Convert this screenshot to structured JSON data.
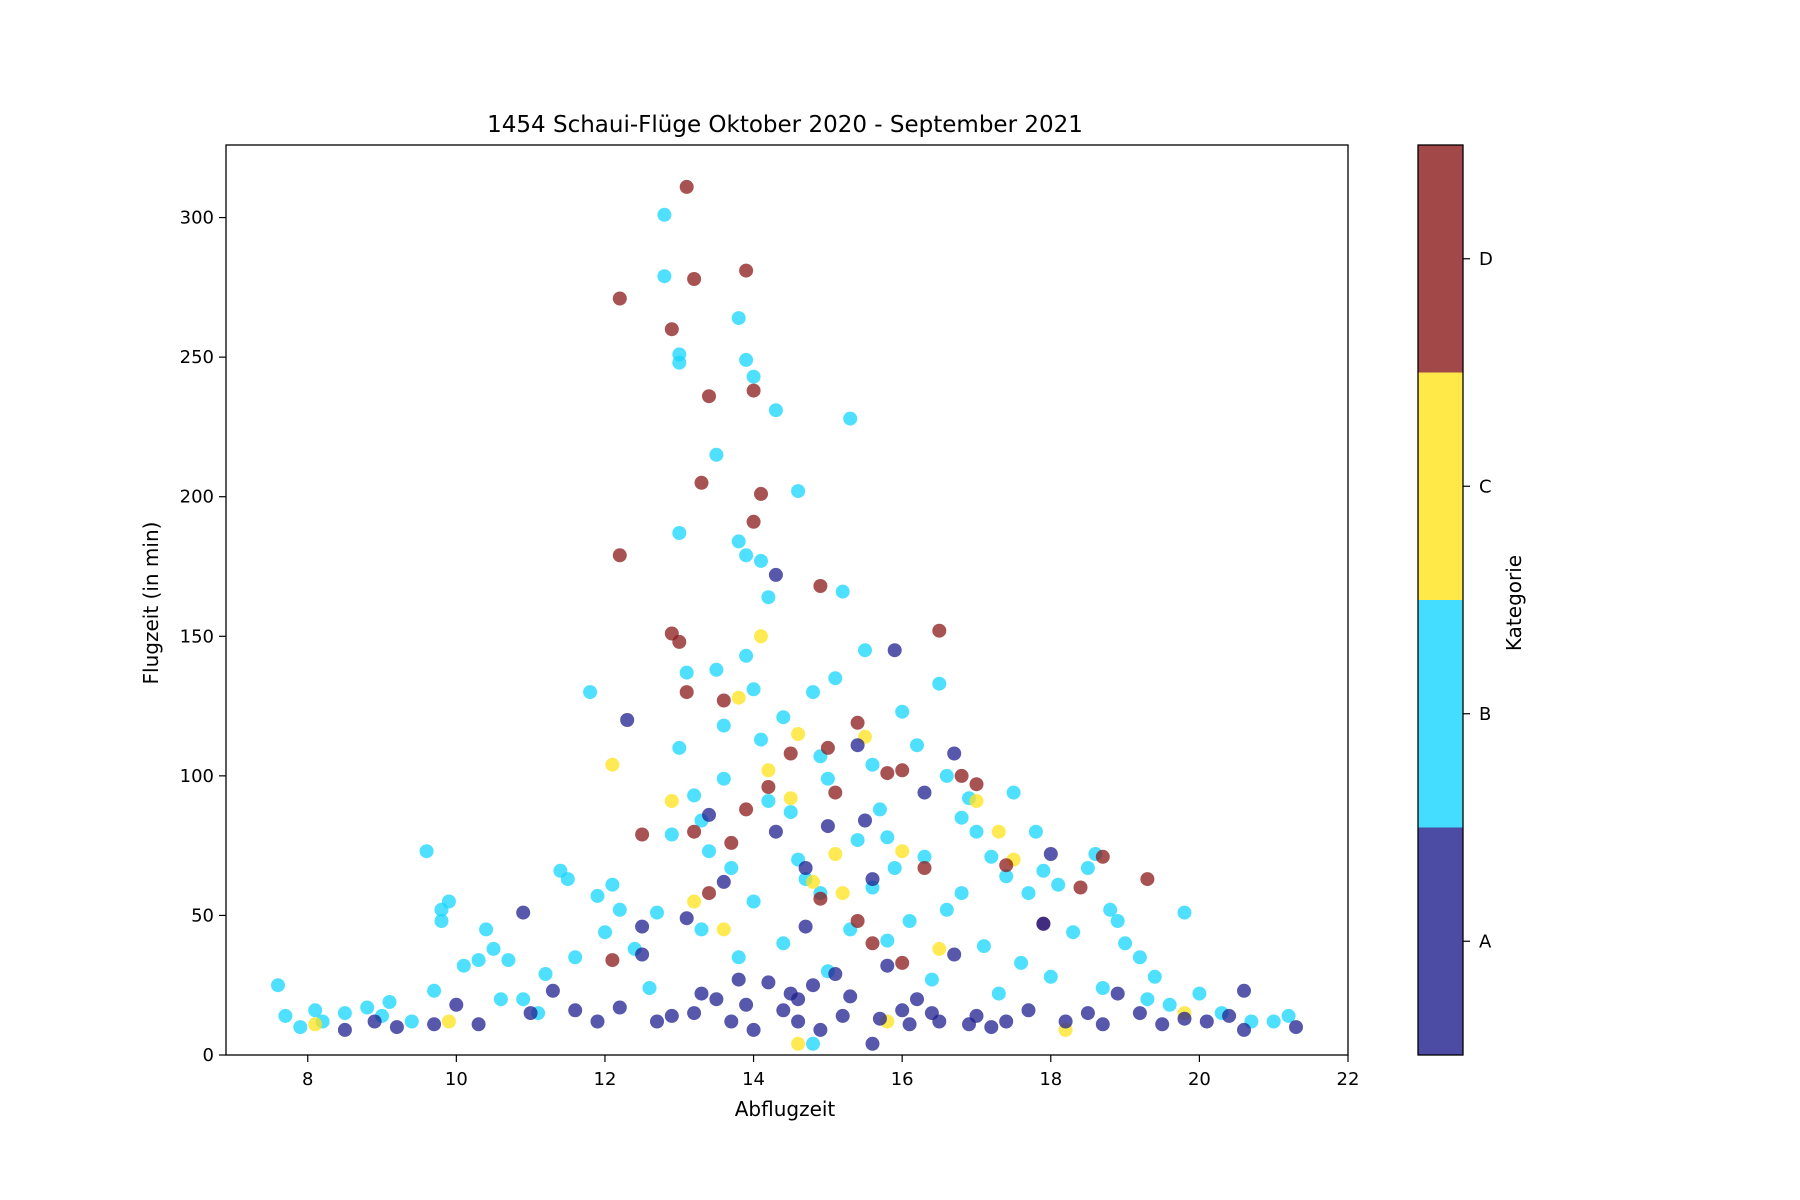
{
  "chart_data": {
    "type": "scatter",
    "title": "1454 Schaui-Flüge Oktober 2020 - September 2021",
    "xlabel": "Abflugzeit",
    "ylabel": "Flugzeit (in min)",
    "xlim": [
      6.9,
      22
    ],
    "ylim": [
      0,
      326
    ],
    "xticks": [
      8,
      10,
      12,
      14,
      16,
      18,
      20,
      22
    ],
    "yticks": [
      0,
      50,
      100,
      150,
      200,
      250,
      300
    ],
    "grid": false,
    "colorbar": {
      "label": "Kategorie",
      "categories": [
        "A",
        "B",
        "C",
        "D"
      ],
      "colors": [
        "#1f1f8f",
        "#15d5ff",
        "#ffe31a",
        "#8b1a1a"
      ]
    },
    "series": [
      {
        "name": "A",
        "points": [
          [
            8.5,
            9
          ],
          [
            8.9,
            12
          ],
          [
            9.2,
            10
          ],
          [
            9.7,
            11
          ],
          [
            10.0,
            18
          ],
          [
            10.3,
            11
          ],
          [
            10.9,
            51
          ],
          [
            11.0,
            15
          ],
          [
            11.3,
            23
          ],
          [
            11.6,
            16
          ],
          [
            11.9,
            12
          ],
          [
            12.2,
            17
          ],
          [
            12.3,
            120
          ],
          [
            12.5,
            46
          ],
          [
            12.5,
            36
          ],
          [
            12.7,
            12
          ],
          [
            12.9,
            14
          ],
          [
            13.1,
            49
          ],
          [
            13.2,
            15
          ],
          [
            13.3,
            22
          ],
          [
            13.4,
            86
          ],
          [
            13.5,
            20
          ],
          [
            13.6,
            62
          ],
          [
            13.7,
            12
          ],
          [
            13.8,
            27
          ],
          [
            13.9,
            18
          ],
          [
            14.0,
            9
          ],
          [
            14.2,
            26
          ],
          [
            14.3,
            172
          ],
          [
            14.3,
            80
          ],
          [
            14.4,
            16
          ],
          [
            14.5,
            22
          ],
          [
            14.6,
            12
          ],
          [
            14.7,
            67
          ],
          [
            14.7,
            46
          ],
          [
            14.8,
            25
          ],
          [
            14.9,
            9
          ],
          [
            15.0,
            82
          ],
          [
            15.1,
            29
          ],
          [
            15.2,
            14
          ],
          [
            15.3,
            21
          ],
          [
            15.4,
            111
          ],
          [
            15.5,
            84
          ],
          [
            15.6,
            63
          ],
          [
            15.7,
            13
          ],
          [
            15.8,
            32
          ],
          [
            15.9,
            145
          ],
          [
            16.0,
            16
          ],
          [
            16.1,
            11
          ],
          [
            16.2,
            20
          ],
          [
            16.3,
            94
          ],
          [
            16.4,
            15
          ],
          [
            16.5,
            12
          ],
          [
            16.7,
            108
          ],
          [
            16.7,
            36
          ],
          [
            16.9,
            11
          ],
          [
            17.0,
            14
          ],
          [
            17.2,
            10
          ],
          [
            17.4,
            12
          ],
          [
            17.7,
            16
          ],
          [
            17.9,
            47
          ],
          [
            18.0,
            72
          ],
          [
            18.2,
            12
          ],
          [
            18.5,
            15
          ],
          [
            18.7,
            11
          ],
          [
            18.9,
            22
          ],
          [
            19.2,
            15
          ],
          [
            19.5,
            11
          ],
          [
            19.8,
            13
          ],
          [
            20.1,
            12
          ],
          [
            20.4,
            14
          ],
          [
            20.6,
            23
          ],
          [
            20.6,
            9
          ],
          [
            21.3,
            10
          ],
          [
            15.6,
            4
          ],
          [
            14.6,
            20
          ]
        ]
      },
      {
        "name": "B",
        "points": [
          [
            7.6,
            25
          ],
          [
            7.7,
            14
          ],
          [
            7.9,
            10
          ],
          [
            8.1,
            16
          ],
          [
            8.5,
            15
          ],
          [
            8.8,
            17
          ],
          [
            9.1,
            19
          ],
          [
            9.4,
            12
          ],
          [
            9.6,
            73
          ],
          [
            9.7,
            23
          ],
          [
            9.8,
            52
          ],
          [
            9.8,
            48
          ],
          [
            9.9,
            55
          ],
          [
            10.1,
            32
          ],
          [
            10.3,
            34
          ],
          [
            10.4,
            45
          ],
          [
            10.5,
            38
          ],
          [
            10.7,
            34
          ],
          [
            10.9,
            20
          ],
          [
            11.2,
            29
          ],
          [
            11.4,
            66
          ],
          [
            11.5,
            63
          ],
          [
            11.6,
            35
          ],
          [
            11.8,
            130
          ],
          [
            11.9,
            57
          ],
          [
            12.0,
            44
          ],
          [
            12.1,
            61
          ],
          [
            12.2,
            52
          ],
          [
            12.4,
            38
          ],
          [
            12.7,
            51
          ],
          [
            12.8,
            301
          ],
          [
            12.8,
            279
          ],
          [
            12.9,
            79
          ],
          [
            13.0,
            251
          ],
          [
            13.0,
            248
          ],
          [
            13.0,
            187
          ],
          [
            13.1,
            137
          ],
          [
            13.2,
            93
          ],
          [
            13.3,
            84
          ],
          [
            13.4,
            73
          ],
          [
            13.5,
            215
          ],
          [
            13.5,
            138
          ],
          [
            13.6,
            99
          ],
          [
            13.7,
            67
          ],
          [
            13.8,
            184
          ],
          [
            13.8,
            264
          ],
          [
            13.9,
            143
          ],
          [
            13.9,
            179
          ],
          [
            13.9,
            249
          ],
          [
            14.0,
            243
          ],
          [
            14.0,
            131
          ],
          [
            14.1,
            177
          ],
          [
            14.1,
            113
          ],
          [
            14.2,
            164
          ],
          [
            14.2,
            91
          ],
          [
            14.3,
            231
          ],
          [
            14.4,
            121
          ],
          [
            14.5,
            87
          ],
          [
            14.6,
            202
          ],
          [
            14.7,
            63
          ],
          [
            14.8,
            130
          ],
          [
            14.9,
            107
          ],
          [
            15.0,
            99
          ],
          [
            15.1,
            135
          ],
          [
            15.2,
            166
          ],
          [
            15.3,
            228
          ],
          [
            15.4,
            77
          ],
          [
            15.5,
            145
          ],
          [
            15.6,
            60
          ],
          [
            15.7,
            88
          ],
          [
            15.8,
            78
          ],
          [
            15.9,
            67
          ],
          [
            16.0,
            123
          ],
          [
            16.2,
            111
          ],
          [
            16.3,
            71
          ],
          [
            16.5,
            133
          ],
          [
            16.6,
            100
          ],
          [
            16.8,
            85
          ],
          [
            16.9,
            92
          ],
          [
            17.0,
            80
          ],
          [
            17.2,
            71
          ],
          [
            17.4,
            64
          ],
          [
            17.5,
            94
          ],
          [
            17.7,
            58
          ],
          [
            17.8,
            80
          ],
          [
            17.9,
            66
          ],
          [
            18.1,
            61
          ],
          [
            18.3,
            44
          ],
          [
            18.5,
            67
          ],
          [
            18.6,
            72
          ],
          [
            18.8,
            52
          ],
          [
            18.9,
            48
          ],
          [
            19.0,
            40
          ],
          [
            19.2,
            35
          ],
          [
            19.4,
            28
          ],
          [
            19.6,
            18
          ],
          [
            19.8,
            51
          ],
          [
            20.0,
            22
          ],
          [
            20.3,
            15
          ],
          [
            20.7,
            12
          ],
          [
            21.0,
            12
          ],
          [
            21.2,
            14
          ],
          [
            8.2,
            12
          ],
          [
            9.0,
            14
          ],
          [
            10.6,
            20
          ],
          [
            11.1,
            15
          ],
          [
            12.6,
            24
          ],
          [
            13.3,
            45
          ],
          [
            13.8,
            35
          ],
          [
            14.0,
            55
          ],
          [
            14.4,
            40
          ],
          [
            14.9,
            58
          ],
          [
            15.3,
            45
          ],
          [
            15.8,
            41
          ],
          [
            16.1,
            48
          ],
          [
            16.6,
            52
          ],
          [
            17.1,
            39
          ],
          [
            17.6,
            33
          ],
          [
            18.0,
            28
          ],
          [
            18.7,
            24
          ],
          [
            19.3,
            20
          ],
          [
            14.8,
            4
          ],
          [
            15.0,
            30
          ],
          [
            16.4,
            27
          ],
          [
            17.3,
            22
          ],
          [
            13.0,
            110
          ],
          [
            13.6,
            118
          ],
          [
            14.6,
            70
          ],
          [
            15.6,
            104
          ],
          [
            16.8,
            58
          ]
        ]
      },
      {
        "name": "C",
        "points": [
          [
            8.1,
            11
          ],
          [
            9.9,
            12
          ],
          [
            12.1,
            104
          ],
          [
            12.9,
            91
          ],
          [
            13.2,
            55
          ],
          [
            13.6,
            45
          ],
          [
            13.8,
            128
          ],
          [
            14.1,
            150
          ],
          [
            14.2,
            102
          ],
          [
            14.5,
            92
          ],
          [
            14.6,
            115
          ],
          [
            14.8,
            62
          ],
          [
            15.1,
            72
          ],
          [
            15.2,
            58
          ],
          [
            15.5,
            114
          ],
          [
            15.8,
            12
          ],
          [
            16.0,
            73
          ],
          [
            16.5,
            38
          ],
          [
            17.0,
            91
          ],
          [
            17.3,
            80
          ],
          [
            17.5,
            70
          ],
          [
            18.2,
            9
          ],
          [
            19.8,
            15
          ],
          [
            14.6,
            4
          ]
        ]
      },
      {
        "name": "D",
        "points": [
          [
            12.2,
            271
          ],
          [
            12.2,
            179
          ],
          [
            12.5,
            79
          ],
          [
            12.9,
            260
          ],
          [
            12.9,
            151
          ],
          [
            13.0,
            148
          ],
          [
            13.1,
            130
          ],
          [
            13.1,
            311
          ],
          [
            13.2,
            278
          ],
          [
            13.3,
            205
          ],
          [
            13.4,
            236
          ],
          [
            13.4,
            58
          ],
          [
            13.6,
            127
          ],
          [
            13.7,
            76
          ],
          [
            13.9,
            281
          ],
          [
            13.9,
            88
          ],
          [
            14.0,
            238
          ],
          [
            14.0,
            191
          ],
          [
            14.1,
            201
          ],
          [
            14.2,
            96
          ],
          [
            14.5,
            108
          ],
          [
            14.9,
            168
          ],
          [
            15.0,
            110
          ],
          [
            15.1,
            94
          ],
          [
            15.4,
            119
          ],
          [
            15.4,
            48
          ],
          [
            15.6,
            40
          ],
          [
            15.8,
            101
          ],
          [
            16.0,
            102
          ],
          [
            16.0,
            33
          ],
          [
            16.3,
            67
          ],
          [
            16.5,
            152
          ],
          [
            16.8,
            100
          ],
          [
            17.0,
            97
          ],
          [
            17.4,
            68
          ],
          [
            17.9,
            47
          ],
          [
            18.4,
            60
          ],
          [
            18.7,
            71
          ],
          [
            19.3,
            63
          ],
          [
            14.9,
            56
          ],
          [
            13.2,
            80
          ],
          [
            12.1,
            34
          ]
        ]
      }
    ]
  }
}
